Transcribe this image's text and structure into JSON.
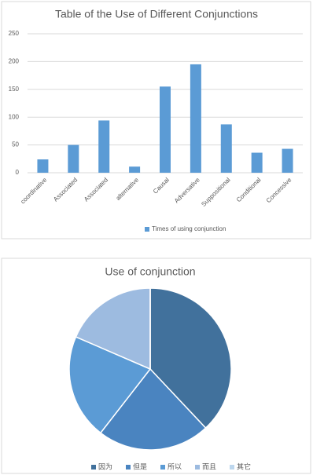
{
  "chart_data": [
    {
      "type": "bar",
      "title": "Table of the Use of Different Conjunctions",
      "categories": [
        "coordinative",
        "Associated",
        "Associated",
        "alternative",
        "Causal",
        "Adversative",
        "Suppositional",
        "Conditional",
        "Concessive"
      ],
      "series": [
        {
          "name": "Times of using conjunction",
          "color": "#5b9bd5",
          "values": [
            24,
            50,
            94,
            11,
            155,
            195,
            87,
            36,
            43
          ]
        }
      ],
      "ylim": [
        0,
        250
      ],
      "yticks": [
        0,
        50,
        100,
        150,
        200,
        250
      ],
      "grid": true,
      "legend": "bottom"
    },
    {
      "type": "pie",
      "title": "Use of conjunction",
      "categories": [
        "因为",
        "但是",
        "所以",
        "而且",
        "其它"
      ],
      "values": [
        38,
        22.5,
        21,
        18.5,
        0
      ],
      "colors": [
        "#41719c",
        "#4a84c0",
        "#5b9bd5",
        "#9dbbe0",
        "#bdd7ee"
      ],
      "legend": "bottom"
    }
  ]
}
